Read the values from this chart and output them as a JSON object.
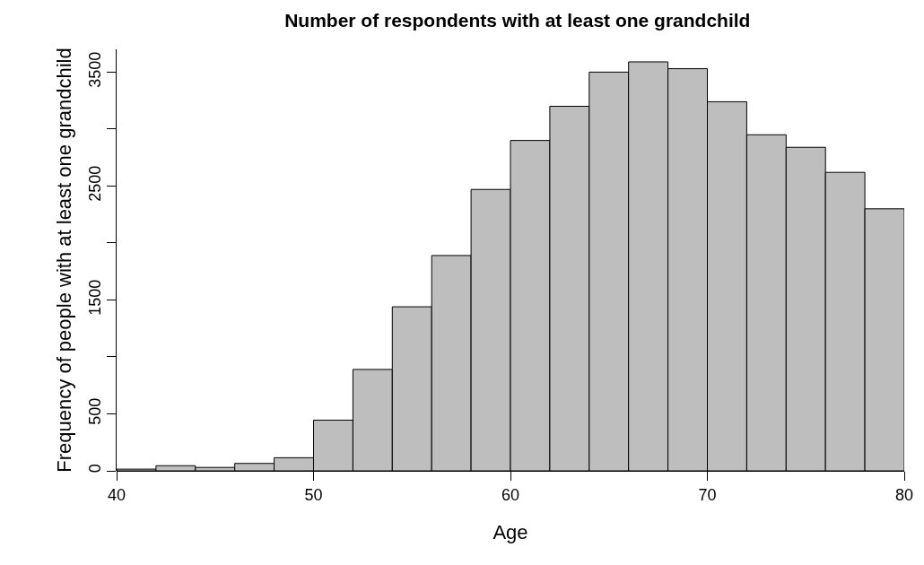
{
  "chart_data": {
    "type": "histogram",
    "title": "Number of respondents with at least one grandchild",
    "xlabel": "Age",
    "ylabel": "Frequency of people with at least one grandchild",
    "bins": [
      40,
      42,
      44,
      46,
      48,
      50,
      52,
      54,
      56,
      58,
      60,
      62,
      64,
      66,
      68,
      70,
      72,
      74,
      76,
      78,
      80
    ],
    "values": [
      15,
      45,
      30,
      65,
      115,
      445,
      890,
      1440,
      1890,
      2470,
      2900,
      3200,
      3500,
      3590,
      3530,
      3240,
      2950,
      2840,
      2620,
      2300
    ],
    "color": "#bebebe",
    "xlim": [
      40,
      80
    ],
    "xticks": [
      40,
      50,
      60,
      70,
      80
    ],
    "ylim": [
      0,
      3700
    ],
    "yticks": [
      0,
      500,
      {
        "value": 1000,
        "label": null
      },
      1500,
      {
        "value": 2000,
        "label": null
      },
      2500,
      {
        "value": 3000,
        "label": null
      },
      3500
    ],
    "grid": false,
    "legend": false
  }
}
